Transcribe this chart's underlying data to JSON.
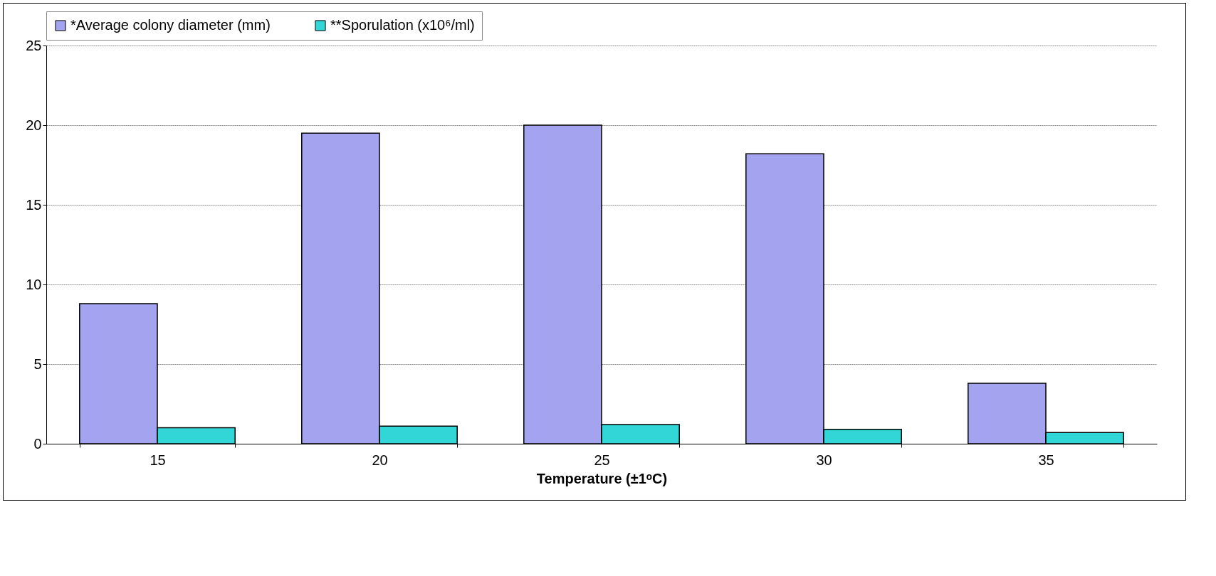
{
  "chart_data": {
    "type": "bar",
    "xlabel": "Temperature (±1ᵒC)",
    "categories": [
      "15",
      "20",
      "25",
      "30",
      "35"
    ],
    "series": [
      {
        "name": "*Average colony diameter (mm)",
        "color": "#a3a3f0",
        "values": [
          8.8,
          19.5,
          20,
          18.2,
          3.8
        ]
      },
      {
        "name": "**Sporulation (x10⁶/ml)",
        "color": "#33d6d6",
        "values": [
          1.0,
          1.1,
          1.2,
          0.9,
          0.7
        ]
      }
    ],
    "ylim": [
      0,
      25
    ],
    "yticks": [
      0,
      5,
      10,
      15,
      20,
      25
    ],
    "grid": "y",
    "legend": "top"
  }
}
